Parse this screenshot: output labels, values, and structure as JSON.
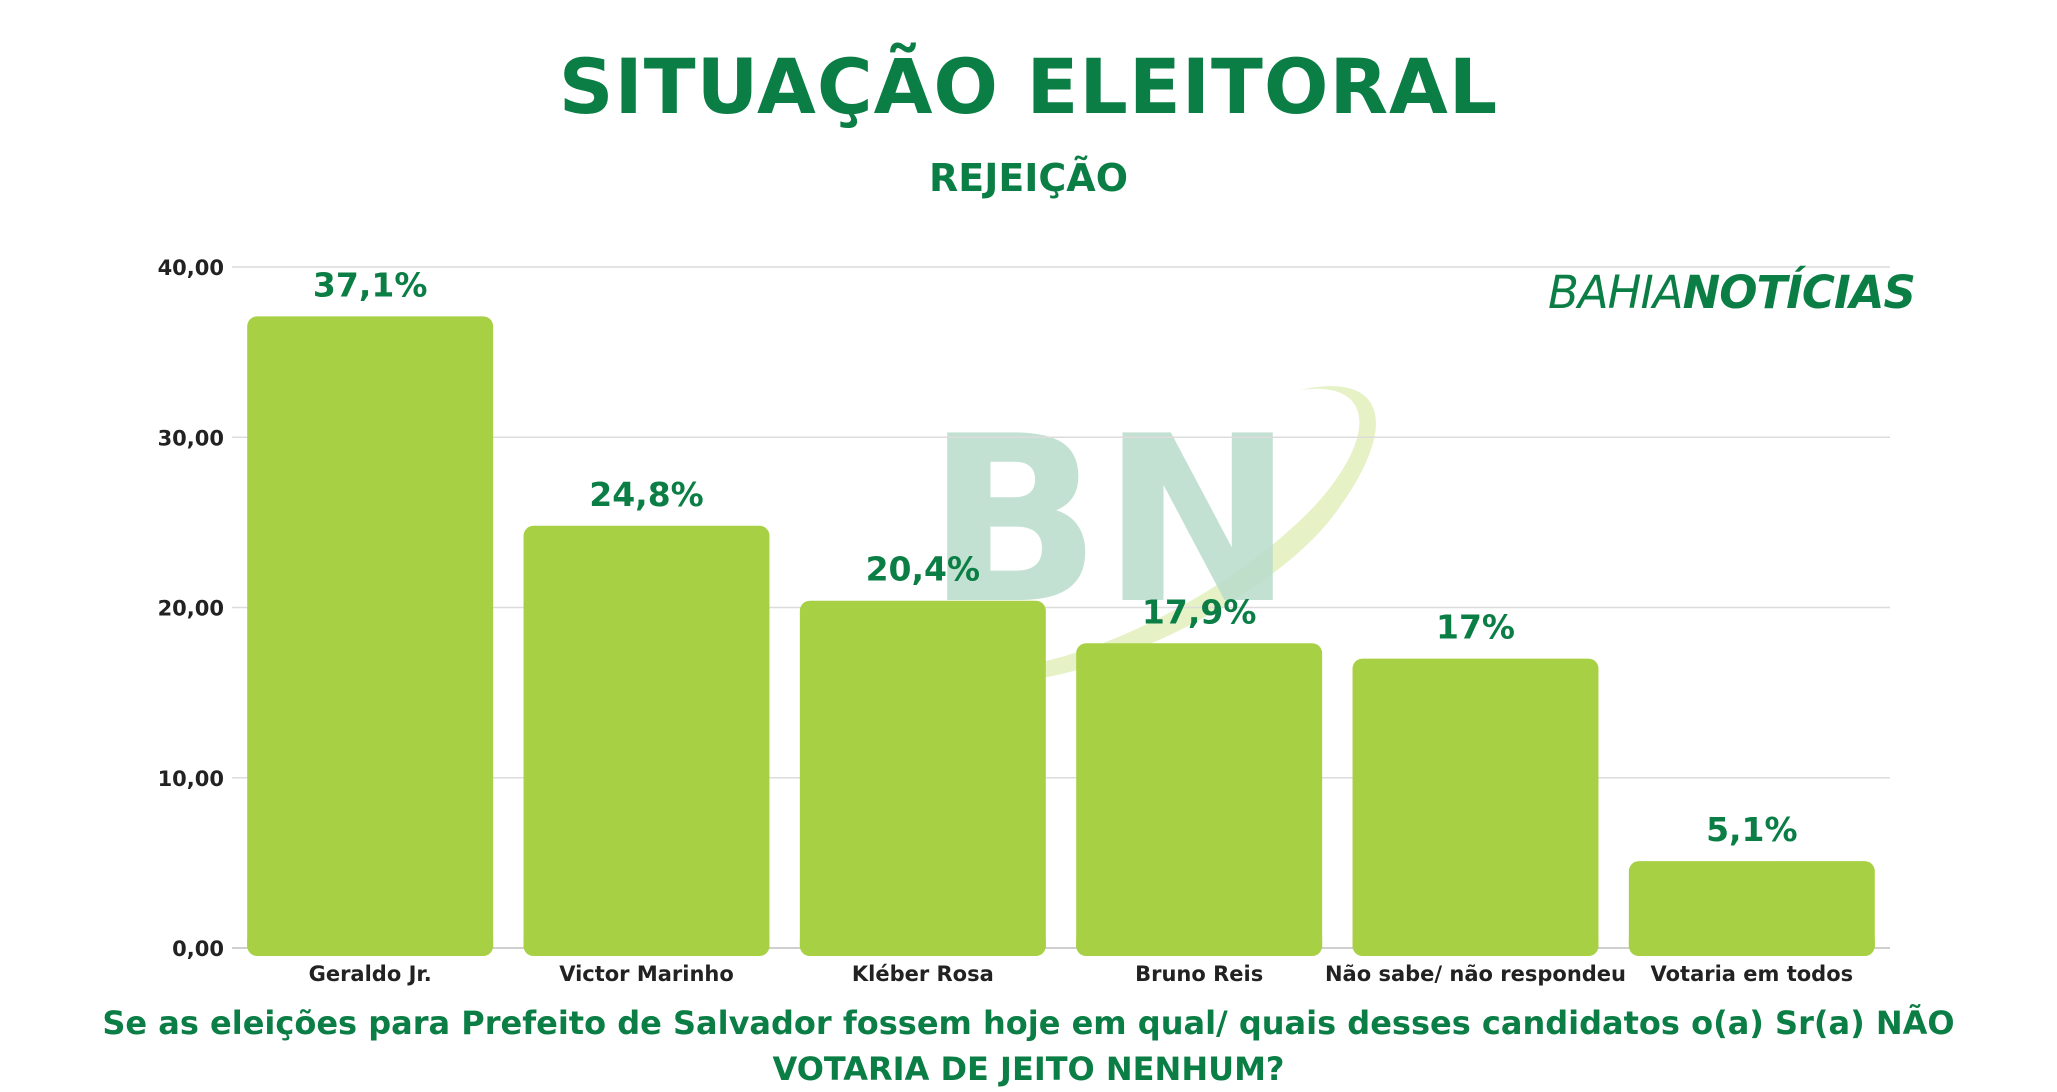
{
  "header": {
    "title": "SITUAÇÃO ELEITORAL",
    "subtitle": "REJEIÇÃO"
  },
  "brand": {
    "part1": "BAHIA",
    "part2": "NOTÍCIAS",
    "watermark": "BN"
  },
  "footer": {
    "question_line1": "Se as eleições para Prefeito de Salvador fossem hoje em qual/ quais desses candidatos o(a) Sr(a) NÃO",
    "question_line2": "VOTARIA DE JEITO NENHUM?"
  },
  "colors": {
    "accent": "#0b7e45",
    "bar": "#a8d045",
    "grid": "#dcdcdc",
    "watermark": "#b9dccb",
    "swoosh": "#e3efc0"
  },
  "chart_data": {
    "type": "bar",
    "categories": [
      "Geraldo Jr.",
      "Victor Marinho",
      "Kléber Rosa",
      "Bruno Reis",
      "Não sabe/ não respondeu",
      "Votaria em todos"
    ],
    "values": [
      37.1,
      24.8,
      20.4,
      17.9,
      17,
      5.1
    ],
    "data_labels": [
      "37,1%",
      "24,8%",
      "20,4%",
      "17,9%",
      "17%",
      "5,1%"
    ],
    "yticks": [
      0,
      10,
      20,
      30,
      40
    ],
    "ytick_labels": [
      "0,00",
      "10,00",
      "20,00",
      "30,00",
      "40,00"
    ],
    "ylim": [
      0,
      40
    ],
    "grid": true,
    "title": "SITUAÇÃO ELEITORAL",
    "subtitle": "REJEIÇÃO"
  }
}
